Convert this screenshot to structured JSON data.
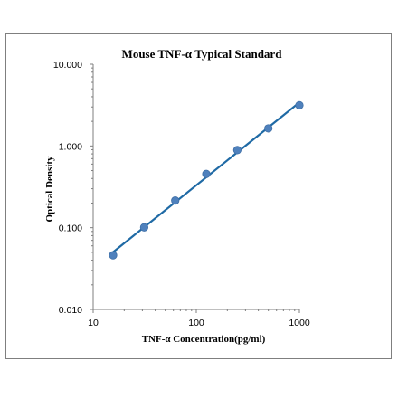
{
  "chart_data": {
    "type": "scatter",
    "title": "Mouse TNF-α Typical Standard",
    "xlabel": "TNF-α Concentration(pg/ml)",
    "ylabel": "Optical Density",
    "xscale": "log",
    "yscale": "log",
    "xlim": [
      10,
      1000
    ],
    "ylim": [
      0.01,
      10
    ],
    "xticks": [
      "10",
      "100",
      "1000"
    ],
    "yticks": [
      "0.010",
      "0.100",
      "1.000",
      "10.000"
    ],
    "grid": false,
    "legend": "none",
    "series": [
      {
        "x": [
          15.6,
          31.25,
          62.5,
          125,
          250,
          500,
          1000
        ],
        "y": [
          0.046,
          0.101,
          0.215,
          0.455,
          0.89,
          1.64,
          3.15
        ],
        "marker_color": "#4f81bd",
        "fit_line": true,
        "line_color": "#1f6aa5"
      }
    ]
  }
}
